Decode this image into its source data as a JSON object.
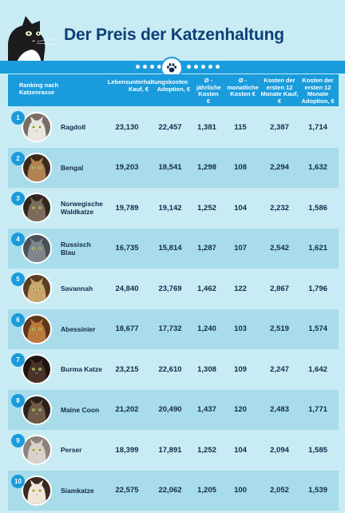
{
  "title": "Der Preis der Katzenhaltung",
  "headers": {
    "rank": "Ranking nach Katzenrasse",
    "life": "Lebensunterhaltungskosten",
    "kauf": "Kauf, €",
    "adoption": "Adoption, €",
    "jahr": "Ø - jährliche Kosten €",
    "monat": "Ø - monatliche Kosten €",
    "k12_kauf": "Kosten der ersten 12 Monate Kauf, €",
    "k12_adoption": "Kosten der ersten 12 Monate Adoption, €"
  },
  "rows": [
    {
      "rank": "1",
      "name": "Ragdoll",
      "kauf": "23,130",
      "adoption": "22,457",
      "jahr": "1,381",
      "monat": "115",
      "k12_kauf": "2,387",
      "k12_adoption": "1,714",
      "fur": "#e9e6e2",
      "accent": "#7a6d66"
    },
    {
      "rank": "2",
      "name": "Bengal",
      "kauf": "19,203",
      "adoption": "18,541",
      "jahr": "1,298",
      "monat": "108",
      "k12_kauf": "2,294",
      "k12_adoption": "1,632",
      "fur": "#b08452",
      "accent": "#3b2a1c"
    },
    {
      "rank": "3",
      "name": "Norwegische Waldkatze",
      "kauf": "19,789",
      "adoption": "19,142",
      "jahr": "1,252",
      "monat": "104",
      "k12_kauf": "2,232",
      "k12_adoption": "1,586",
      "fur": "#7c6a5a",
      "accent": "#2f2620"
    },
    {
      "rank": "4",
      "name": "Russisch Blau",
      "kauf": "16,735",
      "adoption": "15,814",
      "jahr": "1,287",
      "monat": "107",
      "k12_kauf": "2,542",
      "k12_adoption": "1,621",
      "fur": "#7e858c",
      "accent": "#4a5057"
    },
    {
      "rank": "5",
      "name": "Savannah",
      "kauf": "24,840",
      "adoption": "23,769",
      "jahr": "1,462",
      "monat": "122",
      "k12_kauf": "2,867",
      "k12_adoption": "1,796",
      "fur": "#c9a46c",
      "accent": "#5a3e22"
    },
    {
      "rank": "6",
      "name": "Abessinier",
      "kauf": "18,677",
      "adoption": "17,732",
      "jahr": "1,240",
      "monat": "103",
      "k12_kauf": "2,519",
      "k12_adoption": "1,574",
      "fur": "#b97a3c",
      "accent": "#5c361a"
    },
    {
      "rank": "7",
      "name": "Burma Katze",
      "kauf": "23,215",
      "adoption": "22,610",
      "jahr": "1,308",
      "monat": "109",
      "k12_kauf": "2,247",
      "k12_adoption": "1,642",
      "fur": "#4a342a",
      "accent": "#1f1510"
    },
    {
      "rank": "8",
      "name": "Maine Coon",
      "kauf": "21,202",
      "adoption": "20,490",
      "jahr": "1,437",
      "monat": "120",
      "k12_kauf": "2,483",
      "k12_adoption": "1,771",
      "fur": "#6e5a48",
      "accent": "#2a2019"
    },
    {
      "rank": "9",
      "name": "Perser",
      "kauf": "18,399",
      "adoption": "17,891",
      "jahr": "1,252",
      "monat": "104",
      "k12_kauf": "2,094",
      "k12_adoption": "1,585",
      "fur": "#d8d2cc",
      "accent": "#8c847c"
    },
    {
      "rank": "10",
      "name": "Siamkatze",
      "kauf": "22,575",
      "adoption": "22,062",
      "jahr": "1,205",
      "monat": "100",
      "k12_kauf": "2,052",
      "k12_adoption": "1,539",
      "fur": "#efe6d8",
      "accent": "#3a2a22"
    }
  ],
  "colors": {
    "accent": "#1a9cdc",
    "title": "#0f3f78",
    "row_light": "#c9ecf4",
    "row_dark": "#a8dcea"
  }
}
